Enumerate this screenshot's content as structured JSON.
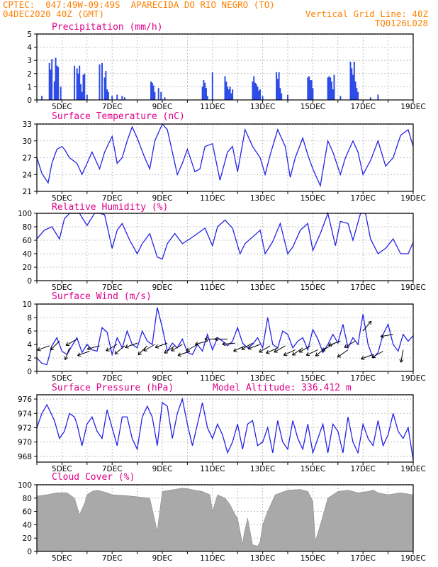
{
  "header": {
    "line1": "CPTEC:  047:49W-09:49S  APARECIDA DO RIO NEGRO (TO)",
    "line2_left": "04DEC2020 40Z (GMT)",
    "line2_right": "Vertical Grid Line: 40Z",
    "line3_right": "TQ0126L028",
    "model_altitude": "Model Altitude: 336.412 m"
  },
  "colors": {
    "header": "#ff8000",
    "title": "#e0008a",
    "line": "#2323e6",
    "bars": "#2d4be6",
    "cloud": "#a9a9a9"
  },
  "x_tick_labels": [
    "5DEC",
    "7DEC",
    "9DEC",
    "11DEC",
    "13DEC",
    "15DEC",
    "17DEC",
    "19DEC"
  ],
  "chart_data": [
    {
      "type": "bar",
      "title": "Precipitation (mm/h)",
      "ylim": [
        0,
        5
      ],
      "yticks": [
        0,
        1,
        2,
        3,
        4,
        5
      ],
      "x": [
        4.2,
        4.5,
        4.55,
        4.6,
        4.7,
        4.75,
        4.8,
        4.85,
        4.95,
        5.5,
        5.6,
        5.65,
        5.7,
        5.75,
        5.8,
        5.85,
        5.9,
        6.0,
        6.5,
        6.6,
        6.7,
        6.75,
        6.8,
        6.85,
        7.0,
        7.2,
        7.4,
        7.5,
        8.55,
        8.6,
        8.65,
        8.7,
        8.85,
        8.95,
        9.1,
        10.6,
        10.65,
        10.7,
        10.75,
        10.8,
        11.0,
        11.5,
        11.55,
        11.6,
        11.65,
        11.7,
        11.75,
        11.8,
        12.6,
        12.65,
        12.7,
        12.75,
        12.8,
        12.85,
        12.9,
        13.0,
        13.55,
        13.6,
        13.65,
        13.7,
        13.75,
        14.0,
        14.8,
        14.85,
        14.9,
        14.95,
        15.0,
        15.6,
        15.65,
        15.7,
        15.75,
        15.8,
        15.85,
        16.1,
        16.5,
        16.55,
        16.6,
        16.65,
        16.7,
        16.75,
        16.8,
        17.3,
        17.6
      ],
      "values": [
        0.3,
        2.8,
        2.3,
        3.1,
        1.4,
        3.2,
        2.6,
        2.5,
        1.0,
        2.6,
        2.4,
        2.0,
        2.6,
        1.2,
        0.6,
        1.9,
        2.0,
        0.4,
        2.7,
        2.8,
        1.7,
        2.2,
        0.8,
        0.6,
        0.3,
        0.4,
        0.3,
        0.2,
        1.4,
        1.3,
        1.1,
        0.6,
        0.9,
        0.6,
        0.2,
        1.0,
        1.5,
        1.3,
        0.9,
        0.3,
        2.1,
        1.8,
        1.4,
        1.0,
        0.8,
        1.0,
        0.5,
        0.8,
        1.4,
        1.8,
        1.3,
        1.2,
        1.0,
        0.7,
        0.8,
        0.3,
        2.1,
        1.6,
        2.1,
        0.9,
        0.5,
        0.4,
        1.7,
        1.8,
        1.5,
        1.5,
        0.9,
        1.7,
        1.8,
        1.7,
        1.4,
        0.8,
        1.9,
        0.3,
        2.9,
        2.4,
        1.9,
        2.9,
        1.4,
        0.9,
        0.6,
        0.2,
        0.4
      ],
      "xlim": [
        4.0,
        19.0
      ]
    },
    {
      "type": "line",
      "title": "Surface Temperature (nC)",
      "ylim": [
        21,
        33
      ],
      "yticks": [
        21,
        24,
        27,
        30,
        33
      ],
      "x": [
        4.0,
        4.2,
        4.45,
        4.6,
        4.8,
        5.0,
        5.1,
        5.3,
        5.6,
        5.8,
        6.0,
        6.2,
        6.4,
        6.5,
        6.7,
        7.0,
        7.2,
        7.4,
        7.6,
        7.8,
        8.0,
        8.3,
        8.5,
        8.7,
        9.0,
        9.2,
        9.4,
        9.6,
        9.8,
        10.0,
        10.3,
        10.5,
        10.7,
        11.0,
        11.3,
        11.6,
        11.8,
        12.0,
        12.3,
        12.6,
        12.9,
        13.1,
        13.3,
        13.6,
        13.9,
        14.1,
        14.3,
        14.6,
        14.8,
        15.0,
        15.3,
        15.6,
        15.8,
        16.1,
        16.3,
        16.6,
        16.8,
        17.0,
        17.3,
        17.6,
        17.9,
        18.2,
        18.5,
        18.8,
        19.0
      ],
      "values": [
        27.0,
        24.2,
        22.5,
        26.0,
        28.5,
        29.0,
        28.5,
        27.0,
        26.0,
        24.0,
        26.0,
        28.0,
        26.0,
        25.0,
        28.0,
        30.8,
        26.0,
        27.0,
        30.0,
        32.5,
        30.5,
        27.0,
        25.0,
        30.0,
        33.0,
        32.0,
        28.0,
        24.0,
        26.0,
        28.5,
        24.5,
        25.0,
        29.0,
        29.5,
        23.0,
        28.0,
        29.0,
        24.5,
        32.0,
        29.0,
        27.0,
        24.0,
        27.5,
        32.0,
        29.0,
        23.5,
        27.0,
        30.5,
        27.5,
        25.0,
        22.0,
        30.0,
        28.0,
        24.0,
        27.0,
        30.0,
        28.0,
        24.0,
        26.5,
        30.0,
        25.5,
        27.0,
        31.0,
        32.0,
        29.0
      ],
      "xlim": [
        4.0,
        19.0
      ]
    },
    {
      "type": "line",
      "title": "Relative Humidity (%)",
      "ylim": [
        0,
        100
      ],
      "yticks": [
        0,
        20,
        40,
        60,
        80,
        100
      ],
      "x": [
        4.0,
        4.3,
        4.6,
        4.9,
        5.1,
        5.3,
        5.7,
        6.0,
        6.3,
        6.5,
        6.7,
        7.0,
        7.2,
        7.4,
        7.7,
        8.0,
        8.2,
        8.5,
        8.8,
        9.0,
        9.2,
        9.5,
        9.8,
        10.1,
        10.4,
        10.7,
        11.0,
        11.2,
        11.5,
        11.8,
        12.1,
        12.3,
        12.6,
        12.9,
        13.1,
        13.4,
        13.7,
        14.0,
        14.2,
        14.5,
        14.8,
        15.0,
        15.3,
        15.6,
        15.9,
        16.1,
        16.4,
        16.6,
        16.9,
        17.1,
        17.3,
        17.6,
        17.9,
        18.2,
        18.5,
        18.8,
        19.0
      ],
      "values": [
        62.0,
        75.0,
        80.0,
        62.0,
        92.0,
        100.0,
        100.0,
        82.0,
        100.0,
        100.0,
        98.0,
        48.0,
        75.0,
        85.0,
        60.0,
        40.0,
        55.0,
        70.0,
        35.0,
        32.0,
        55.0,
        70.0,
        55.0,
        62.0,
        70.0,
        78.0,
        52.0,
        80.0,
        90.0,
        78.0,
        40.0,
        55.0,
        65.0,
        75.0,
        40.0,
        58.0,
        85.0,
        40.0,
        50.0,
        75.0,
        85.0,
        45.0,
        70.0,
        100.0,
        52.0,
        88.0,
        85.0,
        60.0,
        100.0,
        100.0,
        62.0,
        40.0,
        48.0,
        62.0,
        40.0,
        40.0,
        57.0
      ],
      "xlim": [
        4.0,
        19.0
      ]
    },
    {
      "type": "line",
      "title": "Surface Wind (m/s)",
      "ylim": [
        0,
        10
      ],
      "yticks": [
        0,
        2,
        4,
        6,
        8,
        10
      ],
      "x": [
        4.0,
        4.2,
        4.4,
        4.6,
        4.8,
        5.0,
        5.2,
        5.4,
        5.6,
        5.8,
        6.0,
        6.2,
        6.4,
        6.6,
        6.8,
        7.0,
        7.2,
        7.4,
        7.6,
        7.8,
        8.0,
        8.2,
        8.4,
        8.6,
        8.8,
        9.0,
        9.2,
        9.4,
        9.6,
        9.8,
        10.0,
        10.2,
        10.4,
        10.6,
        10.8,
        11.0,
        11.2,
        11.4,
        11.6,
        11.8,
        12.0,
        12.2,
        12.4,
        12.6,
        12.8,
        13.0,
        13.2,
        13.4,
        13.6,
        13.8,
        14.0,
        14.2,
        14.4,
        14.6,
        14.8,
        15.0,
        15.2,
        15.4,
        15.6,
        15.8,
        16.0,
        16.2,
        16.4,
        16.6,
        16.8,
        17.0,
        17.2,
        17.4,
        17.6,
        17.8,
        18.0,
        18.2,
        18.4,
        18.6,
        18.8,
        19.0
      ],
      "values": [
        2.0,
        1.2,
        1.0,
        3.8,
        5.0,
        3.0,
        2.5,
        3.8,
        5.0,
        2.8,
        4.0,
        3.2,
        3.0,
        6.5,
        5.8,
        2.5,
        5.0,
        3.5,
        6.0,
        4.0,
        3.5,
        6.0,
        4.5,
        4.0,
        9.5,
        6.5,
        3.0,
        4.2,
        3.5,
        4.8,
        2.8,
        2.5,
        4.0,
        3.0,
        5.5,
        3.2,
        5.0,
        4.5,
        3.8,
        4.5,
        6.5,
        4.2,
        3.5,
        4.0,
        5.0,
        3.5,
        8.0,
        4.0,
        3.5,
        6.0,
        5.5,
        3.5,
        4.5,
        5.0,
        3.2,
        6.2,
        4.8,
        2.8,
        4.0,
        5.5,
        4.2,
        7.0,
        3.5,
        5.0,
        4.0,
        8.5,
        4.0,
        2.0,
        2.8,
        5.5,
        7.0,
        4.0,
        3.0,
        5.5,
        4.5,
        5.3
      ],
      "arrows": {
        "x": [
          4.5,
          4.9,
          5.3,
          5.6,
          6.1,
          6.5,
          7.2,
          7.5,
          8.0,
          8.4,
          8.7,
          9.2,
          9.5,
          9.8,
          10.1,
          10.4,
          10.8,
          11.2,
          11.6,
          11.9,
          12.3,
          12.6,
          12.9,
          13.3,
          13.6,
          13.9,
          14.3,
          14.6,
          14.9,
          15.2,
          15.5,
          15.8,
          16.1,
          16.4,
          16.7,
          17.0,
          17.4,
          17.8,
          18.2,
          18.6
        ],
        "y": [
          3.8,
          4.5,
          3.5,
          4.8,
          3.0,
          3.8,
          4.0,
          3.8,
          4.2,
          3.8,
          4.0,
          4.2,
          3.8,
          4.0,
          3.0,
          4.0,
          4.5,
          4.8,
          4.8,
          4.2,
          3.8,
          4.2,
          4.0,
          3.8,
          3.5,
          3.8,
          3.2,
          3.5,
          3.8,
          3.2,
          3.5,
          4.0,
          4.5,
          3.2,
          4.5,
          6.0,
          2.5,
          3.0,
          5.5,
          3.2
        ],
        "angle": [
          200,
          225,
          250,
          210,
          200,
          195,
          210,
          220,
          200,
          225,
          210,
          200,
          215,
          210,
          200,
          210,
          195,
          180,
          180,
          185,
          205,
          210,
          200,
          210,
          205,
          210,
          205,
          215,
          210,
          205,
          220,
          210,
          200,
          215,
          210,
          50,
          200,
          210,
          190,
          260
        ]
      },
      "xlim": [
        4.0,
        19.0
      ]
    },
    {
      "type": "line",
      "title": "Surface Pressure (hPa)",
      "ylim": [
        967.2,
        976.6
      ],
      "yticks": [
        968,
        970,
        972,
        974,
        976
      ],
      "x": [
        4.0,
        4.2,
        4.4,
        4.5,
        4.7,
        4.9,
        5.1,
        5.3,
        5.5,
        5.6,
        5.8,
        6.0,
        6.2,
        6.4,
        6.6,
        6.8,
        7.0,
        7.2,
        7.4,
        7.6,
        7.8,
        8.0,
        8.2,
        8.4,
        8.6,
        8.8,
        9.0,
        9.2,
        9.4,
        9.6,
        9.8,
        10.0,
        10.2,
        10.4,
        10.6,
        10.8,
        11.0,
        11.2,
        11.4,
        11.6,
        11.8,
        12.0,
        12.2,
        12.4,
        12.6,
        12.8,
        13.0,
        13.2,
        13.4,
        13.6,
        13.8,
        14.0,
        14.2,
        14.4,
        14.6,
        14.8,
        15.0,
        15.2,
        15.4,
        15.6,
        15.8,
        16.0,
        16.2,
        16.4,
        16.6,
        16.8,
        17.0,
        17.2,
        17.4,
        17.6,
        17.8,
        18.0,
        18.2,
        18.4,
        18.6,
        18.8,
        19.0
      ],
      "values": [
        972.0,
        974.0,
        975.2,
        974.5,
        973.0,
        970.5,
        971.5,
        974.0,
        973.5,
        972.5,
        969.5,
        972.5,
        973.5,
        971.5,
        970.5,
        974.5,
        972.0,
        969.5,
        973.5,
        973.5,
        970.5,
        969.0,
        973.5,
        975.0,
        973.5,
        969.5,
        975.5,
        975.0,
        970.5,
        974.0,
        976.0,
        972.5,
        969.5,
        972.5,
        975.5,
        972.0,
        970.5,
        972.5,
        971.0,
        968.5,
        970.0,
        972.5,
        969.0,
        972.5,
        973.0,
        969.5,
        970.0,
        972.0,
        968.5,
        973.0,
        970.0,
        969.0,
        973.0,
        970.5,
        969.0,
        972.5,
        968.5,
        970.5,
        972.5,
        968.5,
        972.5,
        971.5,
        968.5,
        973.5,
        970.0,
        968.5,
        972.5,
        970.5,
        969.5,
        973.0,
        969.5,
        971.0,
        974.0,
        971.5,
        970.5,
        972.0,
        967.5
      ],
      "xlim": [
        4.0,
        19.0
      ]
    },
    {
      "type": "area",
      "title": "Cloud Cover (%)",
      "ylim": [
        0,
        100
      ],
      "yticks": [
        0,
        20,
        40,
        60,
        80,
        100
      ],
      "x": [
        4.0,
        4.4,
        4.8,
        5.2,
        5.5,
        5.7,
        5.9,
        6.0,
        6.2,
        6.4,
        6.8,
        7.0,
        7.5,
        8.0,
        8.5,
        8.8,
        9.0,
        9.3,
        9.5,
        9.8,
        10.0,
        10.3,
        10.6,
        10.9,
        11.0,
        11.2,
        11.5,
        11.7,
        11.9,
        12.0,
        12.1,
        12.2,
        12.25,
        12.4,
        12.6,
        12.8,
        12.9,
        13.0,
        13.2,
        13.5,
        14.0,
        14.5,
        14.8,
        15.0,
        15.1,
        15.3,
        15.6,
        16.0,
        16.4,
        16.8,
        17.2,
        17.4,
        17.6,
        18.0,
        18.5,
        19.0
      ],
      "values": [
        83.0,
        85.0,
        88.0,
        88.0,
        80.0,
        55.0,
        72.0,
        85.0,
        90.0,
        92.0,
        88.0,
        85.0,
        84.0,
        82.0,
        80.0,
        30.0,
        90.0,
        92.0,
        93.0,
        95.0,
        94.0,
        92.0,
        90.0,
        85.0,
        60.0,
        85.0,
        80.0,
        70.0,
        55.0,
        50.0,
        30.0,
        10.0,
        25.0,
        50.0,
        10.0,
        8.0,
        15.0,
        40.0,
        60.0,
        85.0,
        92.0,
        93.0,
        90.0,
        75.0,
        15.0,
        40.0,
        80.0,
        90.0,
        92.0,
        88.0,
        90.0,
        92.0,
        88.0,
        85.0,
        88.0,
        85.0
      ],
      "xlim": [
        4.0,
        19.0
      ]
    }
  ]
}
